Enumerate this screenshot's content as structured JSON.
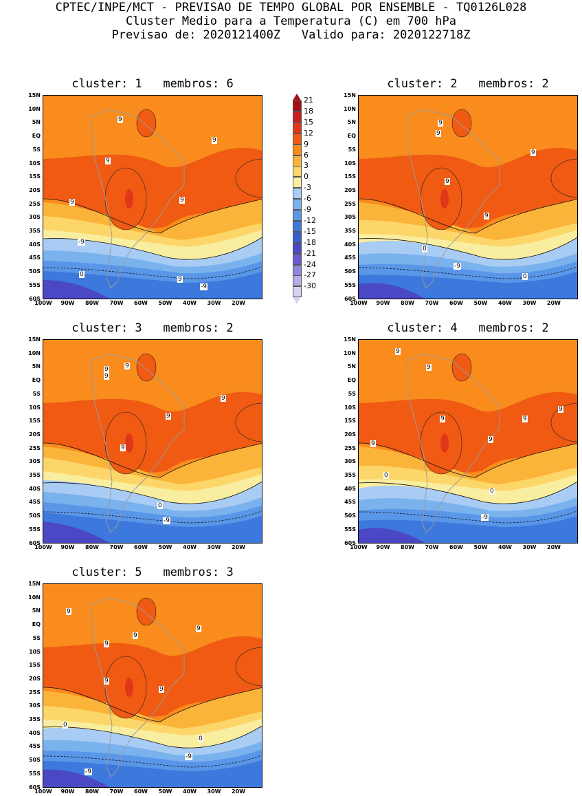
{
  "header": {
    "line1": "CPTEC/INPE/MCT - PREVISAO DE TEMPO GLOBAL POR ENSEMBLE - TQ0126L028",
    "line2": "Cluster Medio para a Temperatura (C) em 700 hPa",
    "line3": "Previsao de: 2020121400Z   Valido para: 2020122718Z"
  },
  "axes": {
    "lat_ticks": [
      "15N",
      "10N",
      "5N",
      "EQ",
      "5S",
      "10S",
      "15S",
      "20S",
      "25S",
      "30S",
      "35S",
      "40S",
      "45S",
      "50S",
      "55S",
      "60S"
    ],
    "lon_ticks": [
      "100W",
      "90W",
      "80W",
      "70W",
      "60W",
      "50W",
      "40W",
      "30W",
      "20W"
    ]
  },
  "panels": [
    {
      "title": "cluster: 1   membros: 6",
      "labels": [
        "9",
        "9",
        "9",
        "9",
        "9",
        "9",
        "0",
        "0",
        "-9",
        "-9"
      ]
    },
    {
      "title": "cluster: 2   membros: 2",
      "labels": [
        "9",
        "9",
        "9",
        "9",
        "9",
        "0",
        "0",
        "-9"
      ]
    },
    {
      "title": "cluster: 3   membros: 2",
      "labels": [
        "9",
        "9",
        "9",
        "9",
        "9",
        "9",
        "0",
        "-9"
      ]
    },
    {
      "title": "cluster: 4   membros: 2",
      "labels": [
        "9",
        "9",
        "9",
        "9",
        "9",
        "9",
        "9",
        "0",
        "0",
        "-9"
      ]
    },
    {
      "title": "cluster: 5   membros: 3",
      "labels": [
        "9",
        "9",
        "9",
        "9",
        "9",
        "9",
        "0",
        "0",
        "-9",
        "-9"
      ]
    }
  ],
  "colorbar": {
    "labels": [
      "21",
      "18",
      "15",
      "12",
      "9",
      "6",
      "3",
      "0",
      "-3",
      "-6",
      "-9",
      "-12",
      "-15",
      "-18",
      "-21",
      "-24",
      "-27",
      "-30"
    ],
    "colors": [
      "#a50f15",
      "#c8201e",
      "#e1361a",
      "#f05a12",
      "#f98c1c",
      "#fbb43a",
      "#fdd66a",
      "#f9eea0",
      "#a9ccf4",
      "#7ab2ee",
      "#5a96e8",
      "#3d78dc",
      "#3a5fd0",
      "#4a48c4",
      "#6a5ad0",
      "#8f86de",
      "#b3aee8",
      "#d6d3f2"
    ]
  }
}
